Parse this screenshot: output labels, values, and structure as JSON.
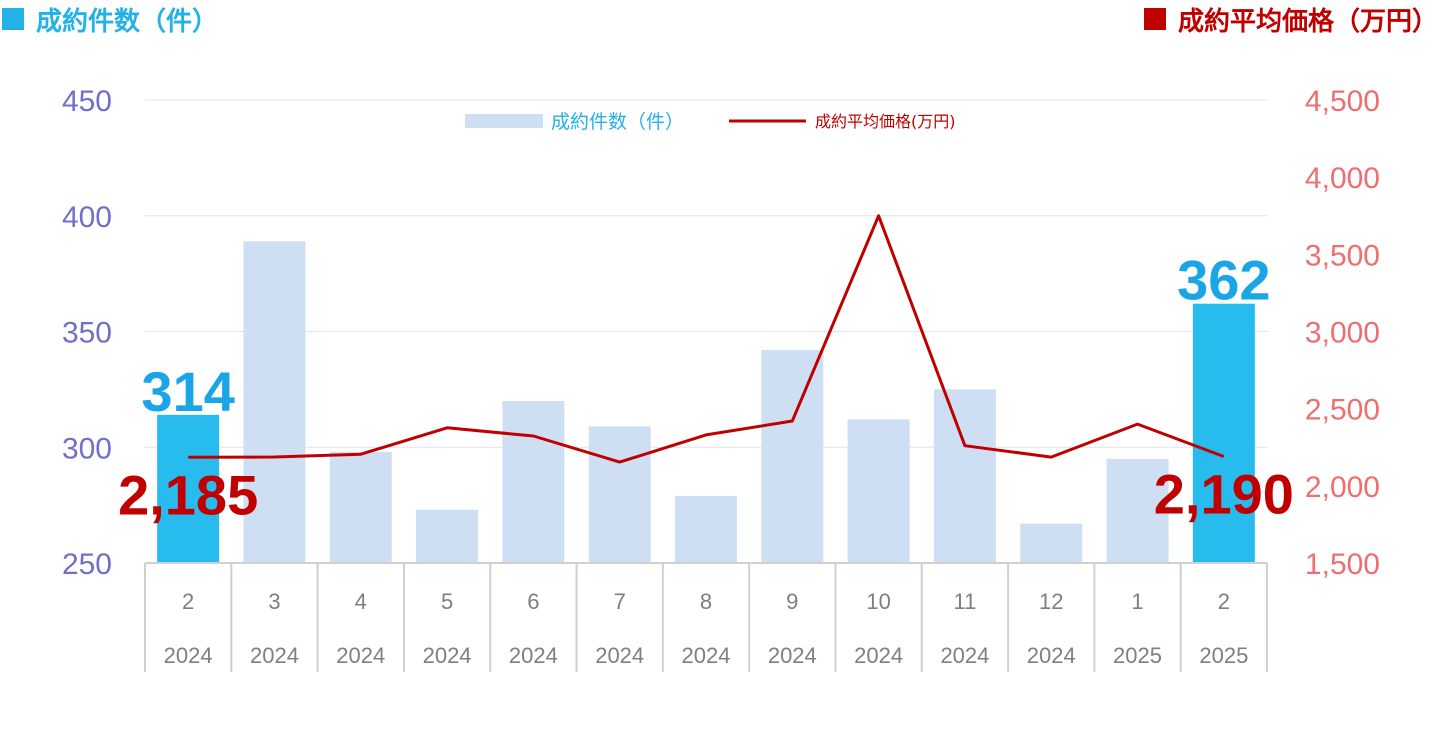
{
  "header": {
    "left_title": "成約件数（件）",
    "right_title": "成約平均価格（万円）",
    "left_color": "#22b2e8",
    "right_color": "#c00000"
  },
  "chart_data": {
    "type": "bar",
    "categories": [
      "2",
      "3",
      "4",
      "5",
      "6",
      "7",
      "8",
      "9",
      "10",
      "11",
      "12",
      "1",
      "2"
    ],
    "years": [
      "2024",
      "2024",
      "2024",
      "2024",
      "2024",
      "2024",
      "2024",
      "2024",
      "2024",
      "2024",
      "2024",
      "2025",
      "2025"
    ],
    "series": [
      {
        "name": "成約件数（件）",
        "type": "bar",
        "axis": "left",
        "values": [
          314,
          389,
          298,
          273,
          320,
          309,
          279,
          342,
          312,
          325,
          267,
          295,
          362
        ],
        "color": "#cfdff3",
        "highlight_color": "#27bbee"
      },
      {
        "name": "成約平均価格(万円)",
        "type": "line",
        "axis": "right",
        "values": [
          2185,
          2187,
          2205,
          2376,
          2323,
          2154,
          2330,
          2420,
          3750,
          2260,
          2186,
          2400,
          2190
        ],
        "color": "#c00000"
      }
    ],
    "y_left": {
      "min": 250,
      "max": 450,
      "step": 50,
      "ticks": [
        "250",
        "300",
        "350",
        "400",
        "450"
      ],
      "color": "#7070c8"
    },
    "y_right": {
      "min": 1500,
      "max": 4500,
      "step": 500,
      "ticks": [
        "1,500",
        "2,000",
        "2,500",
        "3,000",
        "3,500",
        "4,000",
        "4,500"
      ],
      "color": "#ee6f6f"
    },
    "highlight_indices": [
      0,
      12
    ],
    "annotations": [
      {
        "index": 0,
        "bar_label": "314",
        "line_label": "2,185"
      },
      {
        "index": 12,
        "bar_label": "362",
        "line_label": "2,190"
      }
    ],
    "legend_position": "top-center",
    "grid": true,
    "bar_label_color": "#1aa6e6",
    "line_label_color": "#c00000"
  }
}
